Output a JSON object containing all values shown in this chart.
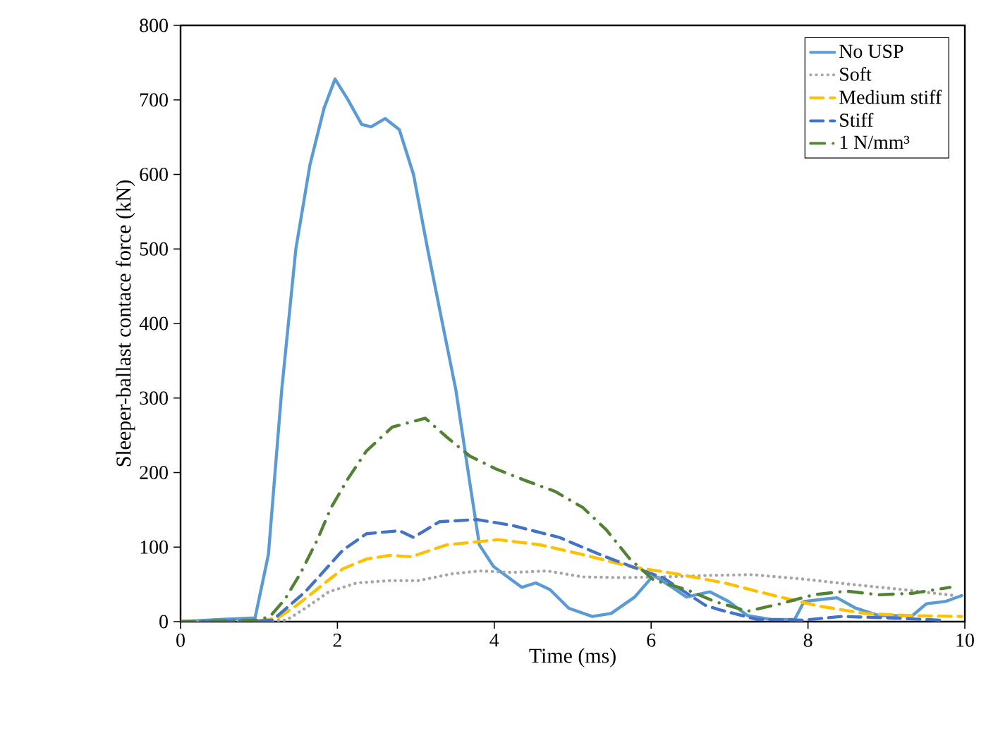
{
  "chart_data": {
    "type": "line",
    "xlabel": "Time (ms)",
    "ylabel": "Sleeper-ballast contace force (kN)",
    "xlim": [
      0,
      10
    ],
    "ylim": [
      0,
      800
    ],
    "xticks": [
      0,
      2,
      4,
      6,
      8,
      10
    ],
    "yticks": [
      0,
      100,
      200,
      300,
      400,
      500,
      600,
      700,
      800
    ],
    "grid": false,
    "legend": "top right",
    "marker": "none",
    "series": [
      {
        "name": "No USP",
        "color": "#5b9bd5",
        "line_style": "solid",
        "x": [
          0,
          0.5,
          0.95,
          1.12,
          1.29,
          1.47,
          1.65,
          1.83,
          1.97,
          2.13,
          2.31,
          2.43,
          2.61,
          2.79,
          2.97,
          3.15,
          3.33,
          3.51,
          3.69,
          3.81,
          3.99,
          4.35,
          4.53,
          4.71,
          4.95,
          5.25,
          5.49,
          5.79,
          6.03,
          6.27,
          6.45,
          6.75,
          6.99,
          7.23,
          7.53,
          7.83,
          7.95,
          8.19,
          8.37,
          8.61,
          8.91,
          9.33,
          9.51,
          9.75,
          9.96
        ],
        "values": [
          0,
          3,
          5,
          90,
          311,
          500,
          613,
          689,
          728,
          701,
          667,
          664,
          675,
          660,
          600,
          500,
          405,
          311,
          185,
          103,
          74,
          46,
          52,
          43,
          18,
          7,
          11,
          33,
          62,
          46,
          33,
          40,
          27,
          8,
          3,
          3,
          27,
          30,
          32,
          18,
          8,
          8,
          24,
          27,
          35
        ]
      },
      {
        "name": "Soft",
        "color": "#a5a5a5",
        "line_style": "dotted",
        "x": [
          0,
          1.0,
          1.35,
          1.59,
          1.89,
          2.25,
          2.67,
          3.03,
          3.45,
          3.81,
          4.23,
          4.68,
          5.13,
          5.61,
          6.15,
          6.75,
          7.29,
          7.95,
          8.55,
          9.21,
          9.87
        ],
        "values": [
          0,
          1,
          2,
          18,
          40,
          52,
          55,
          55,
          64,
          68,
          66,
          68,
          60,
          59,
          60,
          62,
          63,
          57,
          50,
          43,
          35
        ]
      },
      {
        "name": "Medium stiff",
        "color": "#ffc000",
        "line_style": "dashed",
        "x": [
          0,
          1.0,
          1.24,
          1.47,
          1.77,
          2.07,
          2.37,
          2.67,
          2.94,
          3.39,
          4.05,
          4.59,
          5.13,
          5.73,
          6.33,
          6.93,
          7.53,
          8.13,
          8.73,
          9.33,
          9.96
        ],
        "values": [
          0,
          1,
          5,
          21,
          46,
          71,
          84,
          89,
          87,
          103,
          110,
          103,
          90,
          74,
          64,
          52,
          36,
          21,
          11,
          8,
          7
        ]
      },
      {
        "name": "Stiff",
        "color": "#4472c4",
        "line_style": "dashed",
        "x": [
          0,
          1.0,
          1.17,
          1.35,
          1.59,
          1.83,
          2.07,
          2.37,
          2.79,
          2.97,
          3.3,
          3.78,
          4.23,
          4.83,
          5.37,
          5.85,
          6.15,
          6.69,
          6.87,
          7.35,
          7.95,
          8.43,
          9.03,
          9.69
        ],
        "values": [
          0,
          1,
          2,
          18,
          40,
          68,
          96,
          118,
          122,
          113,
          134,
          137,
          129,
          113,
          89,
          70,
          59,
          22,
          16,
          3,
          2,
          7,
          5,
          2
        ]
      },
      {
        "name": "1 N/mm³",
        "color": "#548235",
        "line_style": "dashdot",
        "x": [
          0,
          1.0,
          1.15,
          1.33,
          1.53,
          1.74,
          1.92,
          2.13,
          2.37,
          2.7,
          3.12,
          3.39,
          3.69,
          4.02,
          4.38,
          4.77,
          5.13,
          5.43,
          5.73,
          6.03,
          6.45,
          6.81,
          7.23,
          7.65,
          8.07,
          8.49,
          8.91,
          9.33,
          9.81
        ],
        "values": [
          0,
          2,
          8,
          30,
          65,
          109,
          153,
          191,
          229,
          261,
          273,
          248,
          222,
          205,
          190,
          175,
          153,
          123,
          84,
          56,
          43,
          27,
          14,
          24,
          36,
          41,
          36,
          38,
          46
        ]
      }
    ]
  }
}
